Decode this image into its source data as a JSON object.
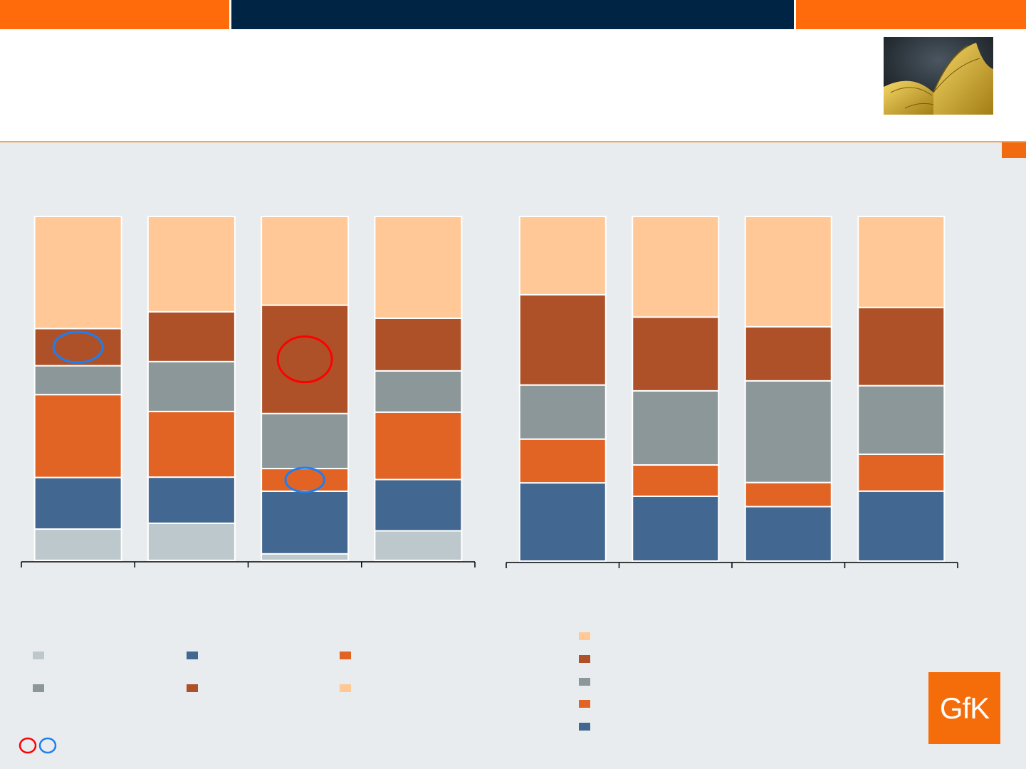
{
  "colors": {
    "light_gray": "#bcc8cc",
    "blue": "#426790",
    "orange": "#e26424",
    "gray": "#8c979a",
    "brown": "#ae5129",
    "peach": "#ffc896",
    "topbar_orange": "#ff6a0a",
    "topbar_navy": "#002444",
    "logo": "#f56d0a",
    "marker_red": "#ff0000",
    "marker_blue": "#1a7ff5"
  },
  "logo": {
    "text": "GfK"
  },
  "photo": {
    "icon": "open-book-photo"
  },
  "chart_data": [
    {
      "type": "bar",
      "stacked": true,
      "normalized_to": 100,
      "categories": [
        "",
        "",
        "",
        ""
      ],
      "series": [
        {
          "color": "#bcc8cc",
          "values": [
            9.1,
            10.8,
            1.9,
            8.6
          ]
        },
        {
          "color": "#426790",
          "values": [
            15.0,
            13.4,
            18.2,
            14.9
          ]
        },
        {
          "color": "#e26424",
          "values": [
            24.1,
            19.1,
            6.6,
            19.6
          ]
        },
        {
          "color": "#8c979a",
          "values": [
            8.4,
            14.5,
            16.0,
            12.0
          ]
        },
        {
          "color": "#ae5129",
          "values": [
            10.8,
            14.5,
            31.5,
            15.3
          ]
        },
        {
          "color": "#ffc896",
          "values": [
            32.6,
            27.7,
            25.8,
            29.6
          ]
        }
      ],
      "annotations": [
        {
          "shape": "ellipse",
          "color": "#1a7ff5",
          "category_index": 0,
          "series_index": 4
        },
        {
          "shape": "ellipse",
          "color": "#ff0000",
          "category_index": 2,
          "series_index": 4
        },
        {
          "shape": "ellipse",
          "color": "#1a7ff5",
          "category_index": 2,
          "series_index": 2
        }
      ]
    },
    {
      "type": "bar",
      "stacked": true,
      "normalized_to": 100,
      "categories": [
        "",
        "",
        "",
        ""
      ],
      "series": [
        {
          "color": "#426790",
          "values": [
            22.7,
            18.8,
            15.8,
            20.3
          ]
        },
        {
          "color": "#e26424",
          "values": [
            12.7,
            9.1,
            7.0,
            10.7
          ]
        },
        {
          "color": "#8c979a",
          "values": [
            15.7,
            21.5,
            29.5,
            19.9
          ]
        },
        {
          "color": "#ae5129",
          "values": [
            26.2,
            21.4,
            15.7,
            22.7
          ]
        },
        {
          "color": "#ffc896",
          "values": [
            22.7,
            29.2,
            32.0,
            26.4
          ]
        }
      ]
    }
  ],
  "legend_left": [
    {
      "color": "#bcc8cc",
      "label": ""
    },
    {
      "color": "#426790",
      "label": ""
    },
    {
      "color": "#e26424",
      "label": ""
    },
    {
      "color": "#8c979a",
      "label": ""
    },
    {
      "color": "#ae5129",
      "label": ""
    },
    {
      "color": "#ffc896",
      "label": ""
    }
  ],
  "legend_right": [
    {
      "color": "#ffc896",
      "label": ""
    },
    {
      "color": "#ae5129",
      "label": ""
    },
    {
      "color": "#8c979a",
      "label": ""
    },
    {
      "color": "#e26424",
      "label": ""
    },
    {
      "color": "#426790",
      "label": ""
    }
  ]
}
